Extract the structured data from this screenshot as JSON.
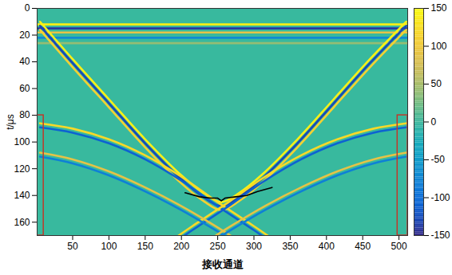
{
  "chart_data": {
    "type": "heatmap",
    "xlabel": "接收通道",
    "ylabel": "t/μs",
    "xlim": [
      1,
      512
    ],
    "ylim": [
      0,
      170
    ],
    "xticks": [
      50,
      100,
      150,
      200,
      250,
      300,
      350,
      400,
      450,
      500
    ],
    "yticks": [
      0,
      20,
      40,
      60,
      80,
      100,
      120,
      140,
      160
    ],
    "colorbar": {
      "range": [
        -150,
        150
      ],
      "ticks": [
        -150,
        -100,
        -50,
        0,
        50,
        100,
        150
      ]
    },
    "wavefronts": [
      {
        "x": [
          1,
          512
        ],
        "t": [
          12,
          12
        ],
        "amplitude": 140
      },
      {
        "x": [
          1,
          512
        ],
        "t": [
          15,
          15
        ],
        "amplitude": -140
      },
      {
        "x": [
          1,
          512
        ],
        "t": [
          18,
          18
        ],
        "amplitude": 90
      },
      {
        "x": [
          1,
          512
        ],
        "t": [
          22,
          22
        ],
        "amplitude": -70
      },
      {
        "x": [
          1,
          512
        ],
        "t": [
          26,
          26
        ],
        "amplitude": 40
      },
      {
        "x": [
          5,
          50,
          100,
          150,
          200,
          230,
          255,
          280,
          310,
          360,
          410,
          460,
          510
        ],
        "t": [
          10,
          38,
          68,
          98,
          125,
          138,
          145,
          138,
          125,
          98,
          68,
          38,
          10
        ],
        "amplitude": 140
      },
      {
        "x": [
          5,
          50,
          100,
          150,
          200,
          230,
          255,
          280,
          310,
          360,
          410,
          460,
          510
        ],
        "t": [
          13,
          41,
          71,
          101,
          128,
          141,
          148,
          141,
          128,
          101,
          71,
          41,
          13
        ],
        "amplitude": -130
      },
      {
        "x": [
          5,
          50,
          100,
          150,
          200,
          230,
          255,
          280,
          310,
          360,
          410,
          460,
          510
        ],
        "t": [
          16,
          44,
          74,
          104,
          131,
          144,
          151,
          144,
          131,
          104,
          74,
          44,
          16
        ],
        "amplitude": 110
      },
      {
        "x": [
          5,
          50,
          100,
          150,
          200,
          250,
          300,
          340
        ],
        "t": [
          86,
          90,
          98,
          110,
          126,
          145,
          163,
          178
        ],
        "amplitude": 120
      },
      {
        "x": [
          5,
          50,
          100,
          150,
          200,
          250,
          300,
          340
        ],
        "t": [
          89,
          93,
          101,
          113,
          129,
          148,
          166,
          181
        ],
        "amplitude": -110
      },
      {
        "x": [
          510,
          465,
          415,
          365,
          315,
          265,
          215,
          175
        ],
        "t": [
          86,
          90,
          98,
          110,
          126,
          145,
          163,
          178
        ],
        "amplitude": 120
      },
      {
        "x": [
          510,
          465,
          415,
          365,
          315,
          265,
          215,
          175
        ],
        "t": [
          89,
          93,
          101,
          113,
          129,
          148,
          166,
          181
        ],
        "amplitude": -110
      },
      {
        "x": [
          5,
          50,
          100,
          150,
          200,
          250,
          290
        ],
        "t": [
          108,
          113,
          122,
          134,
          148,
          164,
          178
        ],
        "amplitude": 90
      },
      {
        "x": [
          5,
          50,
          100,
          150,
          200,
          250,
          290
        ],
        "t": [
          111,
          116,
          125,
          137,
          151,
          167,
          181
        ],
        "amplitude": -80
      },
      {
        "x": [
          510,
          465,
          415,
          365,
          315,
          265,
          225
        ],
        "t": [
          108,
          113,
          122,
          134,
          148,
          164,
          178
        ],
        "amplitude": 90
      },
      {
        "x": [
          510,
          465,
          415,
          365,
          315,
          265,
          225
        ],
        "t": [
          111,
          116,
          125,
          137,
          151,
          167,
          181
        ],
        "amplitude": -80
      }
    ],
    "defect_line": {
      "x": [
        205,
        225,
        240,
        250,
        255,
        260,
        275,
        290,
        305,
        325
      ],
      "t": [
        138,
        141,
        142,
        142,
        144,
        142,
        141,
        140,
        137,
        134
      ],
      "color": "#000000"
    },
    "highlight_boxes": [
      {
        "x": [
          1,
          10
        ],
        "t": [
          80,
          170
        ],
        "color": "#c0392b"
      },
      {
        "x": [
          498,
          512
        ],
        "t": [
          80,
          170
        ],
        "color": "#c0392b"
      }
    ]
  }
}
